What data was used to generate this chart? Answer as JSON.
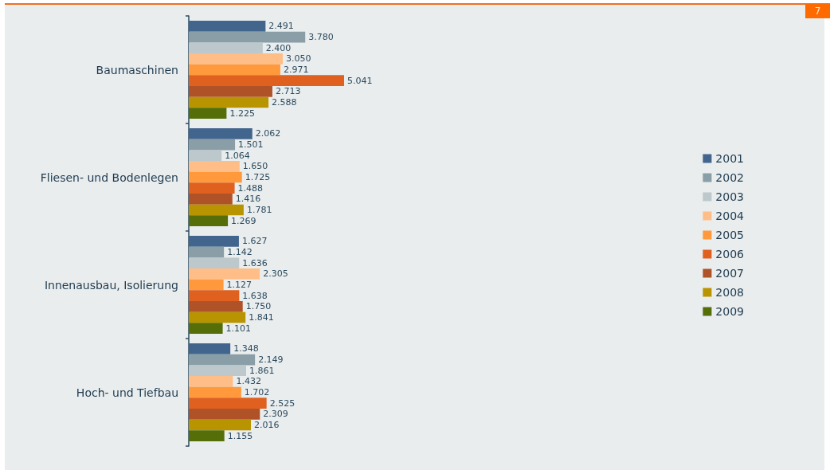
{
  "chart_data": {
    "type": "bar",
    "orientation": "horizontal",
    "categories": [
      "Baumaschinen",
      "Fliesen- und Bodenlegen",
      "Innenausbau, Isolierung",
      "Hoch- und Tiefbau"
    ],
    "series": [
      {
        "name": "2001",
        "color": "#42658e",
        "values": [
          2.491,
          2.062,
          1.627,
          1.348
        ],
        "value_labels": [
          "2.491",
          "2.062",
          "1.627",
          "1.348"
        ]
      },
      {
        "name": "2002",
        "color": "#8a9ea8",
        "values": [
          3.78,
          1.501,
          1.142,
          2.149
        ],
        "value_labels": [
          "3.780",
          "1.501",
          "1.142",
          "2.149"
        ]
      },
      {
        "name": "2003",
        "color": "#bcc8cc",
        "values": [
          2.4,
          1.064,
          1.636,
          1.861
        ],
        "value_labels": [
          "2.400",
          "1.064",
          "1.636",
          "1.861"
        ]
      },
      {
        "name": "2004",
        "color": "#ffbe87",
        "values": [
          3.05,
          1.65,
          2.305,
          1.432
        ],
        "value_labels": [
          "3.050",
          "1.650",
          "2.305",
          "1.432"
        ]
      },
      {
        "name": "2005",
        "color": "#ff993c",
        "values": [
          2.971,
          1.725,
          1.127,
          1.702
        ],
        "value_labels": [
          "2.971",
          "1.725",
          "1.127",
          "1.702"
        ]
      },
      {
        "name": "2006",
        "color": "#e06020",
        "values": [
          5.041,
          1.488,
          1.638,
          2.525
        ],
        "value_labels": [
          "5.041",
          "1.488",
          "1.638",
          "2.525"
        ]
      },
      {
        "name": "2007",
        "color": "#b05228",
        "values": [
          2.713,
          1.416,
          1.75,
          2.309
        ],
        "value_labels": [
          "2.713",
          "1.416",
          "1.750",
          "2.309"
        ]
      },
      {
        "name": "2008",
        "color": "#b89400",
        "values": [
          2.588,
          1.781,
          1.841,
          2.016
        ],
        "value_labels": [
          "2.588",
          "1.781",
          "1.841",
          "2.016"
        ]
      },
      {
        "name": "2009",
        "color": "#566e08",
        "values": [
          1.225,
          1.269,
          1.101,
          1.155
        ],
        "value_labels": [
          "1.225",
          "1.269",
          "1.101",
          "1.155"
        ]
      }
    ],
    "legend": "right",
    "annotations": [
      "7"
    ]
  }
}
